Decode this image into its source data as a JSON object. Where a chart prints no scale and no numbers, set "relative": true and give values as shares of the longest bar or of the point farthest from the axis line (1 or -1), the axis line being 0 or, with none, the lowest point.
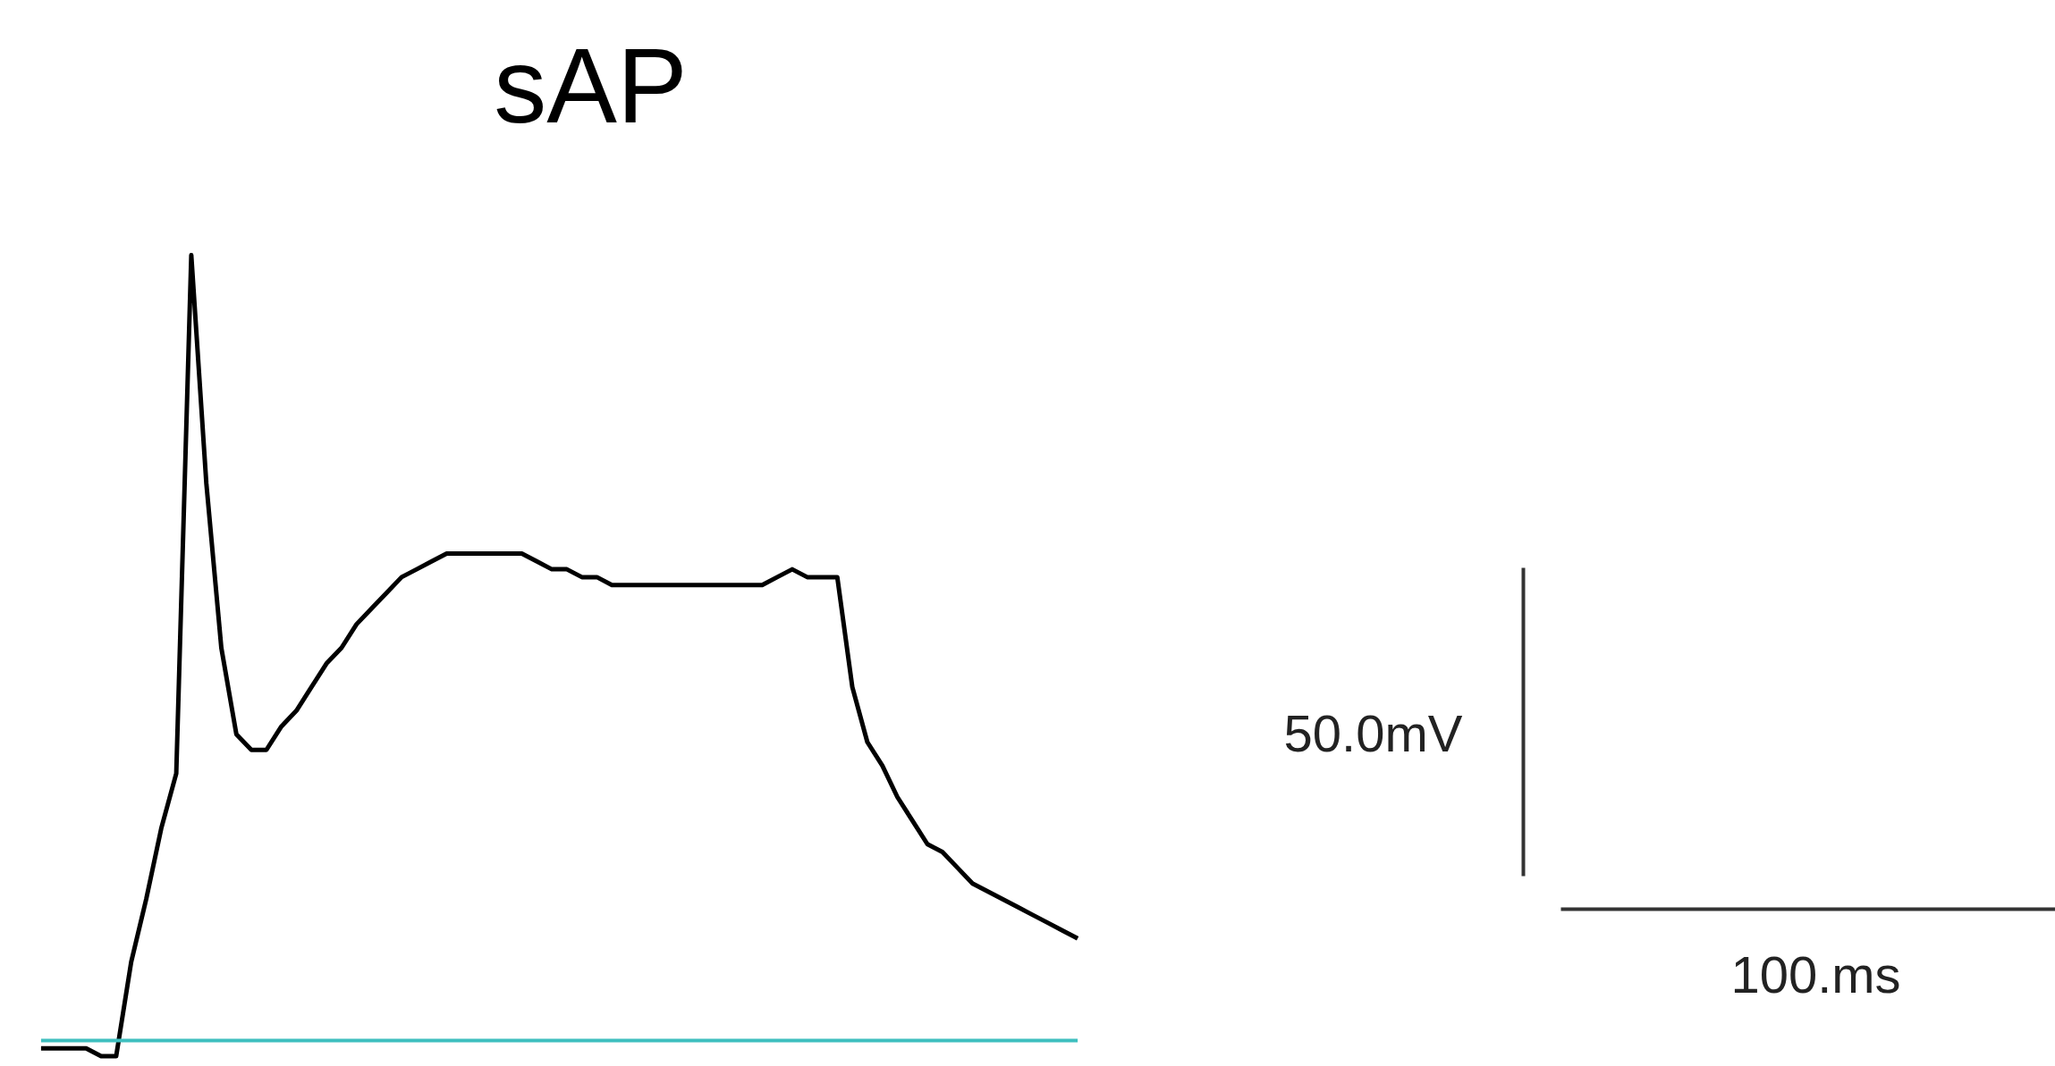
{
  "chart_data": {
    "type": "line",
    "title": "sAP",
    "relative": true,
    "categories": [
      null,
      null,
      null,
      null,
      null,
      null,
      null,
      null,
      null,
      null,
      null,
      null,
      null,
      null,
      null,
      null,
      null,
      null,
      null,
      null,
      null,
      null,
      null,
      null,
      null,
      null,
      null,
      null,
      null,
      null,
      null,
      null,
      null,
      null,
      null,
      null,
      null,
      null,
      null,
      null,
      null,
      null,
      null,
      null,
      null,
      null,
      null,
      null,
      null,
      null,
      null,
      null,
      null,
      null,
      null,
      null,
      null,
      null,
      null,
      null,
      null,
      null,
      null,
      null,
      null,
      null,
      null,
      null,
      null,
      null
    ],
    "series": [
      {
        "color": "#000000",
        "values": [
          -0.01,
          -0.01,
          -0.01,
          -0.01,
          -0.02,
          -0.02,
          0.1,
          0.18,
          0.27,
          0.34,
          1,
          0.71,
          0.5,
          0.39,
          0.37,
          0.37,
          0.4,
          0.42,
          0.45,
          0.48,
          0.5,
          0.53,
          0.55,
          0.57,
          0.59,
          0.6,
          0.61,
          0.62,
          0.62,
          0.62,
          0.62,
          0.62,
          0.62,
          0.61,
          0.6,
          0.6,
          0.59,
          0.59,
          0.58,
          0.58,
          0.58,
          0.58,
          0.58,
          0.58,
          0.58,
          0.58,
          0.58,
          0.58,
          0.58,
          0.59,
          0.6,
          0.59,
          0.59,
          0.59,
          0.45,
          0.38,
          0.35,
          0.31,
          0.28,
          0.25,
          0.24,
          0.22,
          0.2,
          0.19,
          0.18,
          0.17,
          0.16,
          0.15,
          0.14,
          0.13
        ]
      }
    ],
    "marker": "none",
    "line_style": "solid",
    "grid": false,
    "ref_lines": [
      {
        "axis": "y",
        "value": 0,
        "color": "#3fbfbf"
      }
    ],
    "annotations": [
      "50.0mV",
      "100.ms"
    ]
  }
}
